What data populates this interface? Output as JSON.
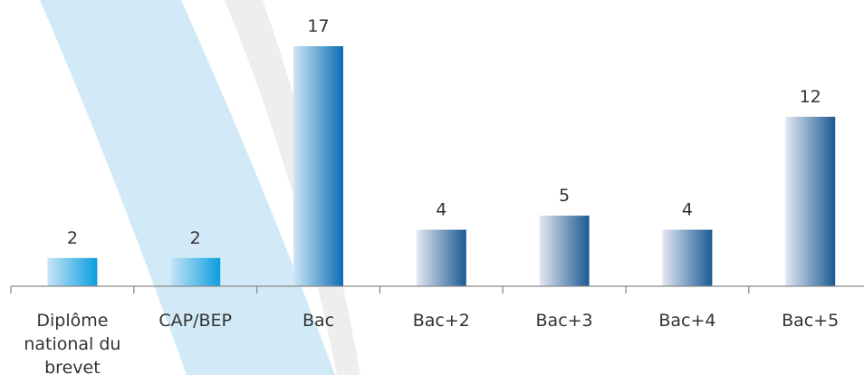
{
  "chart_data": {
    "type": "bar",
    "categories": [
      "Diplôme national du brevet",
      "CAP/BEP",
      "Bac",
      "Bac+2",
      "Bac+3",
      "Bac+4",
      "Bac+5"
    ],
    "category_lines": [
      [
        "Diplôme",
        "national du",
        "brevet"
      ],
      [
        "CAP/BEP"
      ],
      [
        "Bac"
      ],
      [
        "Bac+2"
      ],
      [
        "Bac+3"
      ],
      [
        "Bac+4"
      ],
      [
        "Bac+5"
      ]
    ],
    "values": [
      2,
      2,
      17,
      4,
      5,
      4,
      12
    ],
    "data_labels": [
      "2",
      "2",
      "17",
      "4",
      "5",
      "4",
      "12"
    ],
    "ylim": [
      0,
      17
    ],
    "grid": false,
    "colors": {
      "light_bar_start": "#c8e4f6",
      "light_bar_end": "#0a9ee0",
      "bac_bar_start": "#cfe6f7",
      "bac_bar_end": "#0a6db5",
      "dark_bar_start": "#e4e8f2",
      "dark_bar_end": "#1a5a92",
      "axis": "#8a8a8a",
      "text": "#333333",
      "background_stripe_blue": "#cde8f6",
      "background_stripe_gray": "#eeeeee"
    }
  }
}
